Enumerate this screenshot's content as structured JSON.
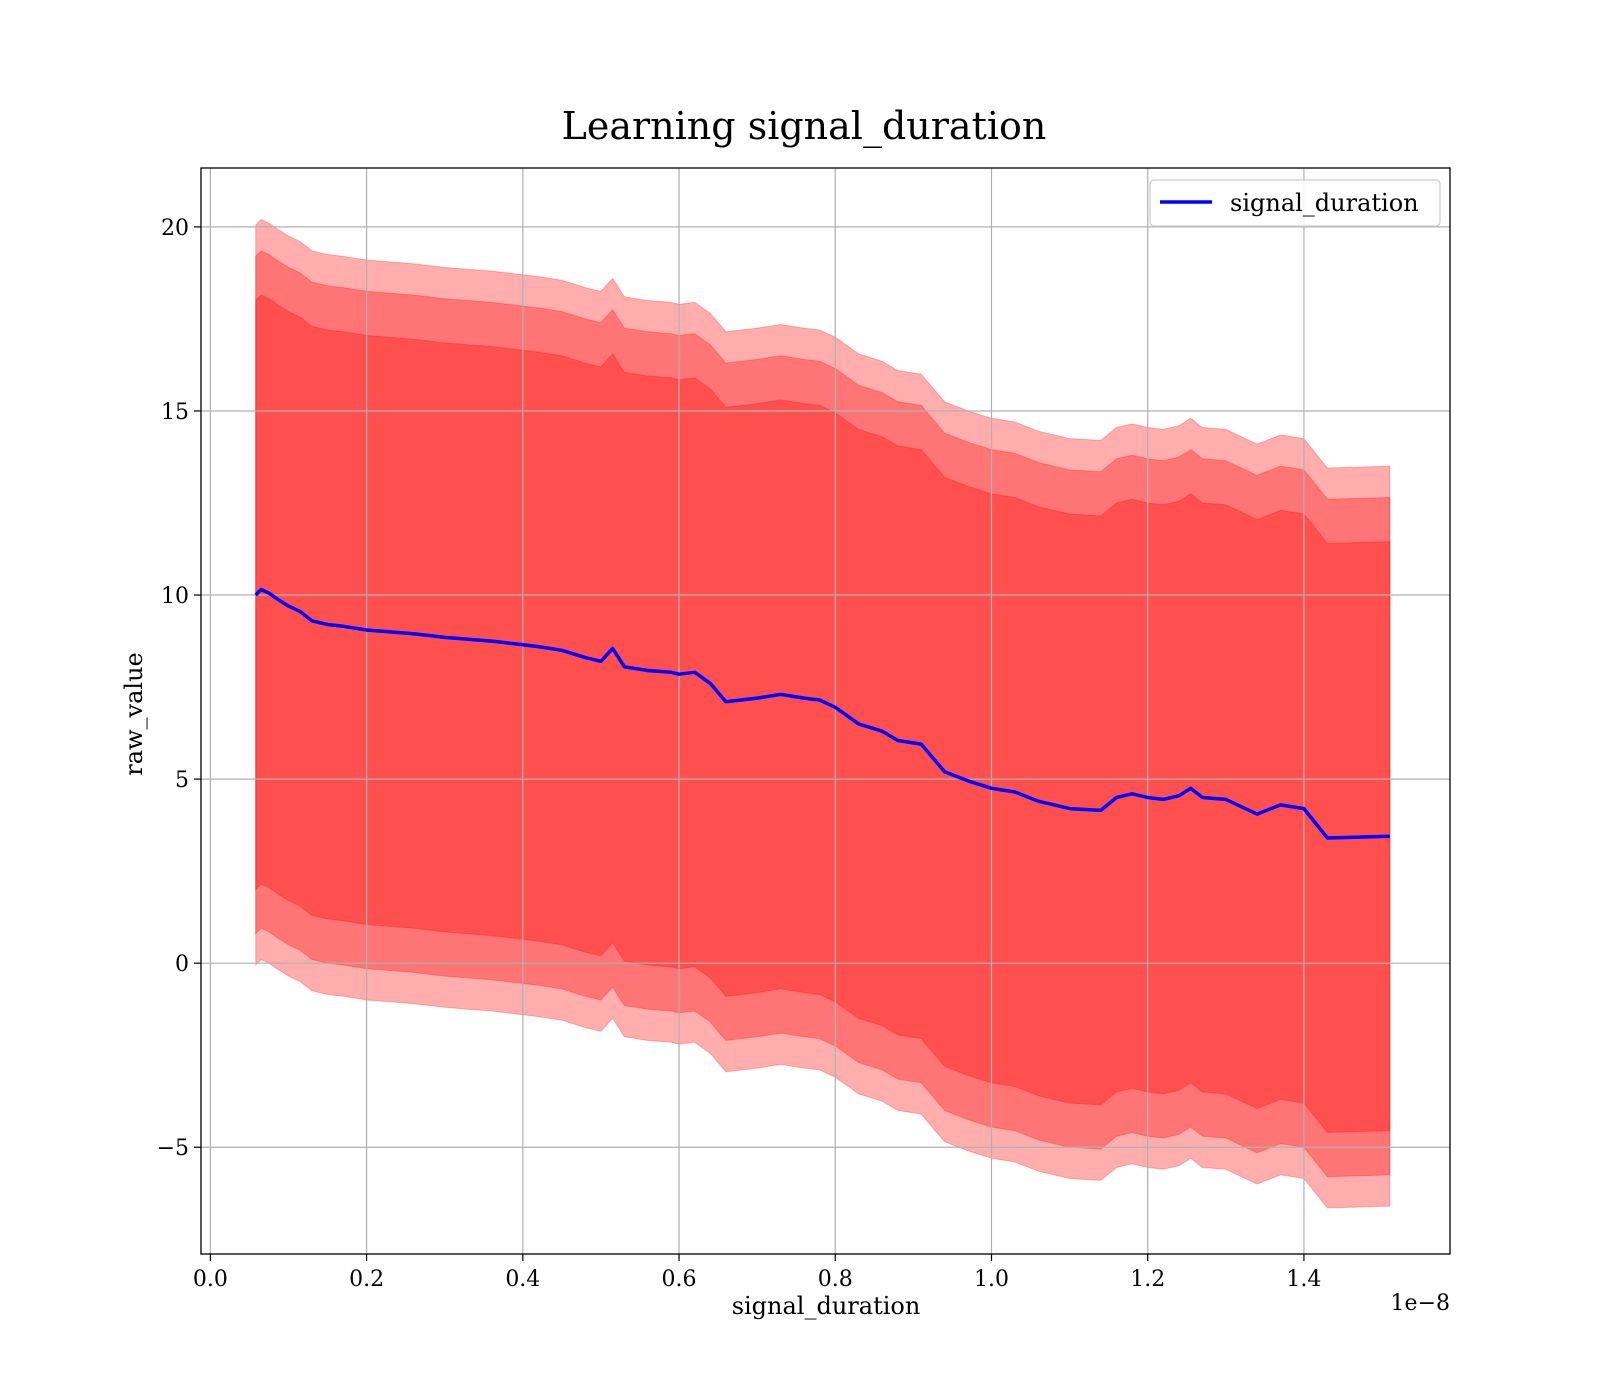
{
  "chart_data": {
    "type": "area",
    "title": "Learning signal_duration",
    "xlabel": "signal_duration",
    "ylabel": "raw_value",
    "x_scale_label": "1e−8",
    "xlim": [
      -0.012,
      1.587
    ],
    "ylim": [
      -7.9,
      21.6
    ],
    "x_ticks": [
      0.0,
      0.2,
      0.4,
      0.6,
      0.8,
      1.0,
      1.2,
      1.4
    ],
    "x_tick_labels": [
      "0.0",
      "0.2",
      "0.4",
      "0.6",
      "0.8",
      "1.0",
      "1.2",
      "1.4"
    ],
    "y_ticks": [
      -5,
      0,
      5,
      10,
      15,
      20
    ],
    "y_tick_labels": [
      "−5",
      "0",
      "5",
      "10",
      "15",
      "20"
    ],
    "grid": true,
    "legend": {
      "position": "top-right",
      "entries": [
        "signal_duration"
      ]
    },
    "colors": {
      "line": "#0000ff",
      "band": "#ff0000",
      "band_opacity": 0.32
    },
    "bands_half_width": [
      8.0,
      9.2,
      10.05
    ],
    "series": [
      {
        "name": "signal_duration",
        "x": [
          0.058,
          0.065,
          0.075,
          0.085,
          0.1,
          0.115,
          0.13,
          0.15,
          0.17,
          0.2,
          0.23,
          0.26,
          0.28,
          0.3,
          0.33,
          0.36,
          0.38,
          0.4,
          0.42,
          0.45,
          0.48,
          0.5,
          0.515,
          0.53,
          0.56,
          0.59,
          0.6,
          0.62,
          0.64,
          0.66,
          0.7,
          0.73,
          0.76,
          0.78,
          0.8,
          0.83,
          0.86,
          0.88,
          0.91,
          0.94,
          0.97,
          1.0,
          1.03,
          1.06,
          1.1,
          1.14,
          1.16,
          1.18,
          1.2,
          1.22,
          1.24,
          1.255,
          1.27,
          1.3,
          1.34,
          1.37,
          1.4,
          1.43,
          1.51
        ],
        "values": [
          10.0,
          10.15,
          10.05,
          9.9,
          9.7,
          9.55,
          9.3,
          9.2,
          9.15,
          9.05,
          9.0,
          8.95,
          8.9,
          8.85,
          8.8,
          8.75,
          8.7,
          8.65,
          8.6,
          8.5,
          8.3,
          8.2,
          8.55,
          8.05,
          7.95,
          7.9,
          7.85,
          7.9,
          7.6,
          7.1,
          7.2,
          7.3,
          7.2,
          7.15,
          6.95,
          6.5,
          6.3,
          6.05,
          5.95,
          5.2,
          4.95,
          4.75,
          4.65,
          4.4,
          4.2,
          4.15,
          4.5,
          4.6,
          4.5,
          4.45,
          4.55,
          4.75,
          4.5,
          4.45,
          4.05,
          4.3,
          4.2,
          3.4,
          3.45
        ]
      }
    ]
  }
}
